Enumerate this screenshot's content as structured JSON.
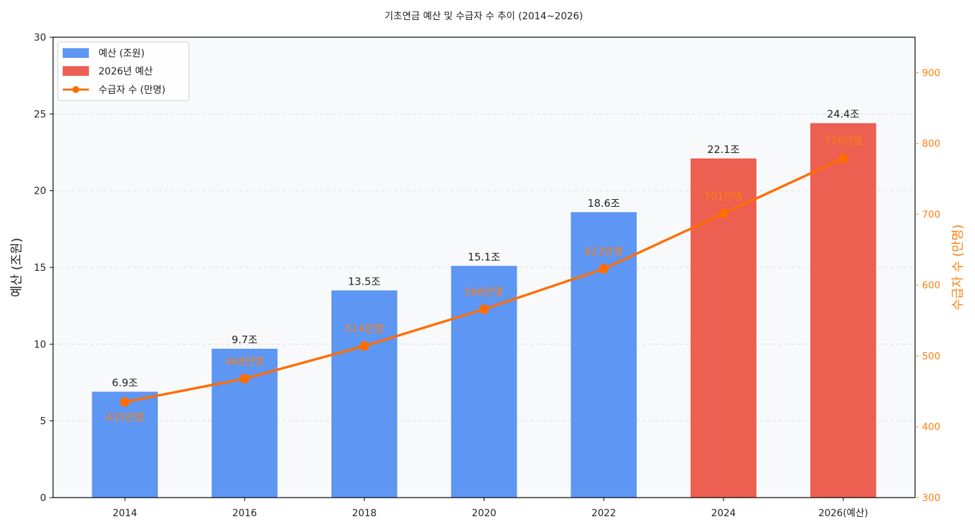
{
  "chart_data": {
    "type": "bar+line",
    "title": "기초연금 예산 및 수급자 수 추이 (2014~2026)",
    "categories": [
      "2014",
      "2016",
      "2018",
      "2020",
      "2022",
      "2024",
      "2026(예산)"
    ],
    "series": [
      {
        "name": "예산 (조원)",
        "axis": "left",
        "type": "bar",
        "values": [
          6.9,
          9.7,
          13.5,
          15.1,
          18.6,
          null,
          null
        ],
        "color": "#5e96f4",
        "labels": [
          "6.9조",
          "9.7조",
          "13.5조",
          "15.1조",
          "18.6조",
          "",
          ""
        ]
      },
      {
        "name": "2026년 예산",
        "axis": "left",
        "type": "bar",
        "values": [
          null,
          null,
          null,
          null,
          null,
          22.1,
          24.4
        ],
        "color": "#ec5f51",
        "labels": [
          "",
          "",
          "",
          "",
          "",
          "22.1조",
          "24.4조"
        ]
      },
      {
        "name": "수급자 수 (만명)",
        "axis": "right",
        "type": "line",
        "values": [
          435,
          468,
          514,
          566,
          623,
          701,
          779
        ],
        "color": "#ff6d00",
        "labels": [
          "435만명",
          "468만명",
          "514만명",
          "566만명",
          "623만명",
          "701만명",
          "779만명"
        ]
      }
    ],
    "ylabel": "예산 (조원)",
    "ylim": [
      0,
      30
    ],
    "yticks": [
      0,
      5,
      10,
      15,
      20,
      25,
      30
    ],
    "y2label": "수급자 수 (만명)",
    "y2lim": [
      300,
      950
    ],
    "y2ticks": [
      300,
      400,
      500,
      600,
      700,
      800,
      900
    ],
    "grid": "horizontal dashed",
    "legend": "top-left"
  }
}
